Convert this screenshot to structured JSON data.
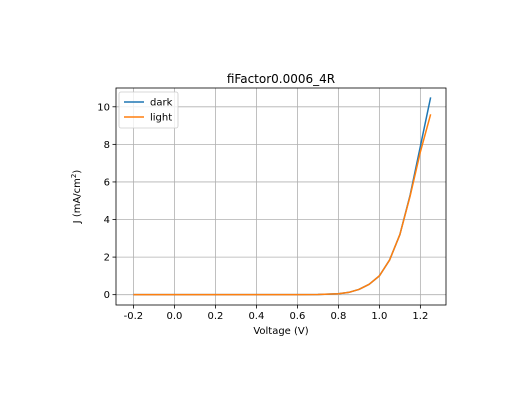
{
  "chart_data": {
    "type": "line",
    "title": "fiFactor0.0006_4R",
    "xlabel": "Voltage (V)",
    "ylabel_main": "J (mA/cm",
    "ylabel_sup": "2",
    "ylabel_end": ")",
    "xlim": [
      -0.285,
      1.325
    ],
    "ylim": [
      -0.55,
      11.0
    ],
    "xticks": [
      -0.2,
      0.0,
      0.2,
      0.4,
      0.6,
      0.8,
      1.0,
      1.2
    ],
    "xtick_labels": [
      "-0.2",
      "0.0",
      "0.2",
      "0.4",
      "0.6",
      "0.8",
      "1.0",
      "1.2"
    ],
    "yticks": [
      0,
      2,
      4,
      6,
      8,
      10
    ],
    "ytick_labels": [
      "0",
      "2",
      "4",
      "6",
      "8",
      "10"
    ],
    "grid": true,
    "legend_position": "top-left",
    "series": [
      {
        "name": "dark",
        "color": "#1f77b4",
        "x": [
          -0.2,
          0.0,
          0.2,
          0.4,
          0.6,
          0.7,
          0.8,
          0.85,
          0.9,
          0.95,
          1.0,
          1.05,
          1.1,
          1.15,
          1.2,
          1.25
        ],
        "y": [
          0.0,
          0.0,
          0.0,
          0.0,
          0.0,
          0.01,
          0.05,
          0.12,
          0.28,
          0.55,
          1.0,
          1.85,
          3.2,
          5.3,
          7.9,
          10.5
        ]
      },
      {
        "name": "light",
        "color": "#ff7f0e",
        "x": [
          -0.2,
          0.0,
          0.2,
          0.4,
          0.6,
          0.7,
          0.8,
          0.85,
          0.9,
          0.95,
          1.0,
          1.05,
          1.1,
          1.15,
          1.2,
          1.25
        ],
        "y": [
          0.0,
          0.0,
          0.0,
          0.0,
          0.0,
          0.01,
          0.05,
          0.12,
          0.28,
          0.55,
          1.0,
          1.85,
          3.2,
          5.25,
          7.6,
          9.6
        ]
      }
    ]
  }
}
